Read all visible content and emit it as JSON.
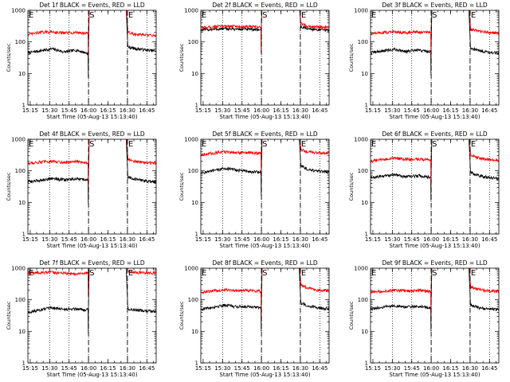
{
  "chart_data": [
    {
      "type": "line",
      "title": "Det 1f BLACK = Events, RED = LLD",
      "xlabel": "Start Time (05-Aug-13 15:13:40)",
      "ylabel": "Counts/sec",
      "yscale": "log",
      "ylim": [
        1,
        1000
      ],
      "xlim": [
        15.22,
        16.87
      ],
      "xticks": [
        "15:15",
        "15:30",
        "15:45",
        "16:00",
        "16:15",
        "16:30",
        "16:45"
      ],
      "yticks": [
        "1",
        "10",
        "100",
        "1000"
      ],
      "markers": [
        {
          "label": "E",
          "t": 15.22
        },
        {
          "label": "S",
          "t": 16.0
        },
        {
          "label": "E",
          "t": 16.5
        }
      ],
      "gap": [
        16.0,
        16.5
      ],
      "dotted_lines": [
        15.5,
        15.75,
        16.0,
        16.5,
        16.75
      ],
      "dashed_lines": [
        16.0,
        16.5
      ],
      "series": [
        {
          "name": "Events",
          "color": "#000000",
          "before": [
            45,
            52,
            60,
            48,
            55,
            42
          ],
          "after": [
            70,
            62,
            58,
            54,
            52
          ]
        },
        {
          "name": "LLD",
          "color": "#ff0000",
          "before": [
            170,
            200,
            210,
            190,
            200,
            185
          ],
          "after": [
            200,
            175,
            168,
            162,
            160
          ]
        }
      ]
    },
    {
      "type": "line",
      "title": "Det 2f BLACK = Events, RED = LLD",
      "xlabel": "Start Time (05-Aug-13 15:13:40)",
      "ylabel": "Counts/sec",
      "yscale": "log",
      "ylim": [
        1,
        1000
      ],
      "xlim": [
        15.22,
        16.87
      ],
      "xticks": [
        "15:15",
        "15:30",
        "15:45",
        "16:00",
        "16:15",
        "16:30",
        "16:45"
      ],
      "yticks": [
        "1",
        "10",
        "100",
        "1000"
      ],
      "markers": [
        {
          "label": "E",
          "t": 15.22
        },
        {
          "label": "S",
          "t": 16.0
        },
        {
          "label": "E",
          "t": 16.5
        }
      ],
      "gap": [
        16.0,
        16.5
      ],
      "dotted_lines": [
        15.5,
        15.75,
        16.0,
        16.5,
        16.75
      ],
      "dashed_lines": [
        16.0,
        16.5
      ],
      "series": [
        {
          "name": "Events",
          "color": "#000000",
          "before": [
            240,
            250,
            260,
            255,
            250,
            245
          ],
          "after": [
            300,
            265,
            250,
            240,
            235
          ]
        },
        {
          "name": "LLD",
          "color": "#ff0000",
          "before": [
            280,
            300,
            320,
            310,
            300,
            295
          ],
          "after": [
            380,
            320,
            300,
            290,
            285
          ]
        }
      ]
    },
    {
      "type": "line",
      "title": "Det 3f BLACK = Events, RED = LLD",
      "xlabel": "Start Time (05-Aug-13 15:13:40)",
      "ylabel": "Counts/sec",
      "yscale": "log",
      "ylim": [
        1,
        1000
      ],
      "xlim": [
        15.22,
        16.87
      ],
      "xticks": [
        "15:15",
        "15:30",
        "15:45",
        "16:00",
        "16:15",
        "16:30",
        "16:45"
      ],
      "yticks": [
        "1",
        "10",
        "100",
        "1000"
      ],
      "markers": [
        {
          "label": "E",
          "t": 15.22
        },
        {
          "label": "S",
          "t": 16.0
        },
        {
          "label": "E",
          "t": 16.5
        }
      ],
      "gap": [
        16.0,
        16.5
      ],
      "dotted_lines": [
        15.5,
        15.75,
        16.0,
        16.5,
        16.75
      ],
      "dashed_lines": [
        16.0,
        16.5
      ],
      "series": [
        {
          "name": "Events",
          "color": "#000000",
          "before": [
            45,
            52,
            58,
            50,
            55,
            48
          ],
          "after": [
            65,
            55,
            50,
            46,
            44
          ]
        },
        {
          "name": "LLD",
          "color": "#ff0000",
          "before": [
            180,
            200,
            210,
            200,
            205,
            195
          ],
          "after": [
            260,
            220,
            205,
            195,
            190
          ]
        }
      ]
    },
    {
      "type": "line",
      "title": "Det 4f BLACK = Events, RED = LLD",
      "xlabel": "Start Time (05-Aug-13 15:13:40)",
      "ylabel": "Counts/sec",
      "yscale": "log",
      "ylim": [
        1,
        1000
      ],
      "xlim": [
        15.22,
        16.87
      ],
      "xticks": [
        "15:15",
        "15:30",
        "15:45",
        "16:00",
        "16:15",
        "16:30",
        "16:45"
      ],
      "yticks": [
        "1",
        "10",
        "100",
        "1000"
      ],
      "markers": [
        {
          "label": "E",
          "t": 15.22
        },
        {
          "label": "S",
          "t": 16.0
        },
        {
          "label": "E",
          "t": 16.5
        }
      ],
      "gap": [
        16.0,
        16.5
      ],
      "dotted_lines": [
        15.5,
        15.75,
        16.0,
        16.5,
        16.75
      ],
      "dashed_lines": [
        16.0,
        16.5
      ],
      "series": [
        {
          "name": "Events",
          "color": "#000000",
          "before": [
            45,
            50,
            58,
            52,
            55,
            50
          ],
          "after": [
            65,
            55,
            50,
            46,
            44
          ]
        },
        {
          "name": "LLD",
          "color": "#ff0000",
          "before": [
            170,
            190,
            200,
            185,
            195,
            180
          ],
          "after": [
            240,
            200,
            185,
            180,
            175
          ]
        }
      ]
    },
    {
      "type": "line",
      "title": "Det 5f BLACK = Events, RED = LLD",
      "xlabel": "Start Time (05-Aug-13 15:13:40)",
      "ylabel": "Counts/sec",
      "yscale": "log",
      "ylim": [
        1,
        1000
      ],
      "xlim": [
        15.22,
        16.87
      ],
      "xticks": [
        "15:15",
        "15:30",
        "15:45",
        "16:00",
        "16:15",
        "16:30",
        "16:45"
      ],
      "yticks": [
        "1",
        "10",
        "100",
        "1000"
      ],
      "markers": [
        {
          "label": "E",
          "t": 15.22
        },
        {
          "label": "S",
          "t": 16.0
        },
        {
          "label": "E",
          "t": 16.5
        }
      ],
      "gap": [
        16.0,
        16.5
      ],
      "dotted_lines": [
        15.5,
        15.75,
        16.0,
        16.5,
        16.75
      ],
      "dashed_lines": [
        16.0,
        16.5
      ],
      "series": [
        {
          "name": "Events",
          "color": "#000000",
          "before": [
            85,
            100,
            120,
            105,
            95,
            90
          ],
          "after": [
            150,
            110,
            100,
            95,
            90
          ]
        },
        {
          "name": "LLD",
          "color": "#ff0000",
          "before": [
            330,
            360,
            400,
            380,
            370,
            360
          ],
          "after": [
            480,
            400,
            380,
            370,
            360
          ]
        }
      ]
    },
    {
      "type": "line",
      "title": "Det 6f BLACK = Events, RED = LLD",
      "xlabel": "Start Time (05-Aug-13 15:13:40)",
      "ylabel": "Counts/sec",
      "yscale": "log",
      "ylim": [
        1,
        1000
      ],
      "xlim": [
        15.22,
        16.87
      ],
      "xticks": [
        "15:15",
        "15:30",
        "15:45",
        "16:00",
        "16:15",
        "16:30",
        "16:45"
      ],
      "yticks": [
        "1",
        "10",
        "100",
        "1000"
      ],
      "markers": [
        {
          "label": "E",
          "t": 15.22
        },
        {
          "label": "S",
          "t": 16.0
        },
        {
          "label": "E",
          "t": 16.5
        }
      ],
      "gap": [
        16.0,
        16.5
      ],
      "dotted_lines": [
        15.5,
        15.75,
        16.0,
        16.5,
        16.75
      ],
      "dashed_lines": [
        16.0,
        16.5
      ],
      "series": [
        {
          "name": "Events",
          "color": "#000000",
          "before": [
            60,
            68,
            75,
            65,
            70,
            62
          ],
          "after": [
            90,
            72,
            65,
            60,
            58
          ]
        },
        {
          "name": "LLD",
          "color": "#ff0000",
          "before": [
            200,
            230,
            250,
            230,
            235,
            215
          ],
          "after": [
            320,
            260,
            240,
            220,
            210
          ]
        }
      ]
    },
    {
      "type": "line",
      "title": "Det 7f BLACK = Events, RED = LLD",
      "xlabel": "Start Time (05-Aug-13 15:13:40)",
      "ylabel": "Counts/sec",
      "yscale": "log",
      "ylim": [
        1,
        1000
      ],
      "xlim": [
        15.22,
        16.87
      ],
      "xticks": [
        "15:15",
        "15:30",
        "15:45",
        "16:00",
        "16:15",
        "16:30",
        "16:45"
      ],
      "yticks": [
        "1",
        "10",
        "100",
        "1000"
      ],
      "markers": [
        {
          "label": "E",
          "t": 15.22
        },
        {
          "label": "S",
          "t": 16.0
        },
        {
          "label": "E",
          "t": 16.5
        }
      ],
      "gap": [
        16.0,
        16.5
      ],
      "dotted_lines": [
        15.5,
        15.75,
        16.0,
        16.5,
        16.75
      ],
      "dashed_lines": [
        16.0,
        16.5
      ],
      "series": [
        {
          "name": "Events",
          "color": "#000000",
          "before": [
            40,
            48,
            55,
            50,
            52,
            48
          ],
          "after": [
            52,
            48,
            45,
            44,
            42
          ]
        },
        {
          "name": "LLD",
          "color": "#ff0000",
          "before": [
            700,
            720,
            740,
            700,
            650,
            720
          ],
          "after": [
            780,
            740,
            720,
            710,
            700
          ]
        }
      ]
    },
    {
      "type": "line",
      "title": "Det 8f BLACK = Events, RED = LLD",
      "xlabel": "Start Time (05-Aug-13 15:13:40)",
      "ylabel": "Counts/sec",
      "yscale": "log",
      "ylim": [
        1,
        1000
      ],
      "xlim": [
        15.22,
        16.87
      ],
      "xticks": [
        "15:15",
        "15:30",
        "15:45",
        "16:00",
        "16:15",
        "16:30",
        "16:45"
      ],
      "yticks": [
        "1",
        "10",
        "100",
        "1000"
      ],
      "markers": [
        {
          "label": "E",
          "t": 15.22
        },
        {
          "label": "S",
          "t": 16.0
        },
        {
          "label": "E",
          "t": 16.5
        }
      ],
      "gap": [
        16.0,
        16.5
      ],
      "dotted_lines": [
        15.5,
        15.75,
        16.0,
        16.5,
        16.75
      ],
      "dashed_lines": [
        16.0,
        16.5
      ],
      "series": [
        {
          "name": "Events",
          "color": "#000000",
          "before": [
            50,
            58,
            68,
            60,
            62,
            55
          ],
          "after": [
            80,
            65,
            58,
            55,
            52
          ]
        },
        {
          "name": "LLD",
          "color": "#ff0000",
          "before": [
            170,
            190,
            210,
            195,
            200,
            185
          ],
          "after": [
            300,
            240,
            210,
            200,
            195
          ]
        }
      ]
    },
    {
      "type": "line",
      "title": "Det 9f BLACK = Events, RED = LLD",
      "xlabel": "Start Time (05-Aug-13 15:13:40)",
      "ylabel": "Counts/sec",
      "yscale": "log",
      "ylim": [
        1,
        1000
      ],
      "xlim": [
        15.22,
        16.87
      ],
      "xticks": [
        "15:15",
        "15:30",
        "15:45",
        "16:00",
        "16:15",
        "16:30",
        "16:45"
      ],
      "yticks": [
        "1",
        "10",
        "100",
        "1000"
      ],
      "markers": [
        {
          "label": "E",
          "t": 15.22
        },
        {
          "label": "S",
          "t": 16.0
        },
        {
          "label": "E",
          "t": 16.5
        }
      ],
      "gap": [
        16.0,
        16.5
      ],
      "dotted_lines": [
        15.5,
        15.75,
        16.0,
        16.5,
        16.75
      ],
      "dashed_lines": [
        16.0,
        16.5
      ],
      "series": [
        {
          "name": "Events",
          "color": "#000000",
          "before": [
            50,
            58,
            65,
            58,
            62,
            55
          ],
          "after": [
            70,
            58,
            52,
            50,
            48
          ]
        },
        {
          "name": "LLD",
          "color": "#ff0000",
          "before": [
            170,
            190,
            200,
            190,
            195,
            185
          ],
          "after": [
            260,
            215,
            200,
            190,
            185
          ]
        }
      ]
    }
  ]
}
